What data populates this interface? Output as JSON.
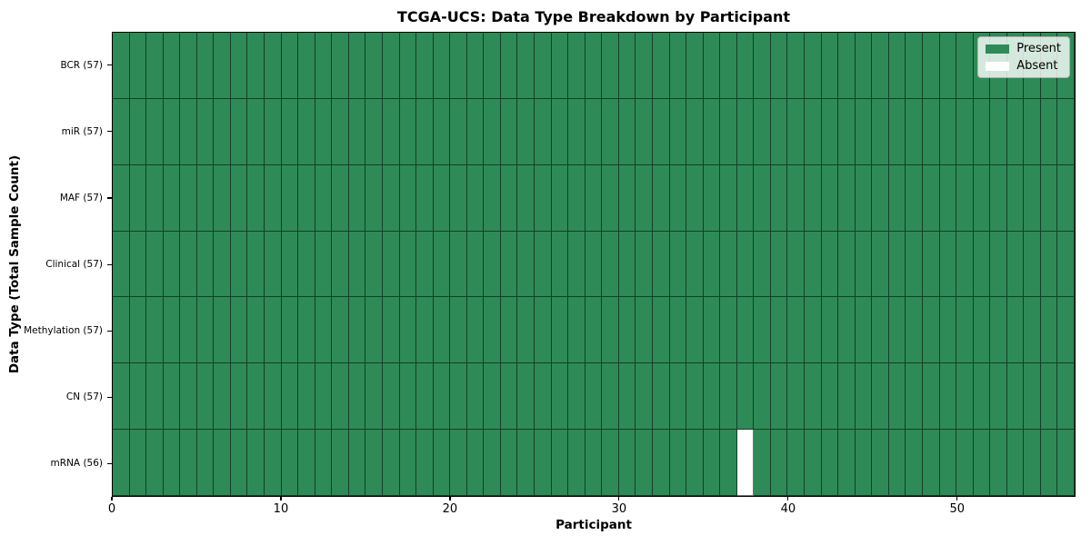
{
  "chart_data": {
    "type": "heatmap",
    "title": "TCGA-UCS: Data Type Breakdown by Participant",
    "xlabel": "Participant",
    "ylabel": "Data Type (Total Sample Count)",
    "x_ticks": [
      0,
      10,
      20,
      30,
      40,
      50
    ],
    "x_range": [
      0,
      57
    ],
    "n_participants": 57,
    "rows": [
      {
        "label": "BCR (57)",
        "data_type": "BCR",
        "total_sample_count": 57,
        "absent_columns": []
      },
      {
        "label": "miR (57)",
        "data_type": "miR",
        "total_sample_count": 57,
        "absent_columns": []
      },
      {
        "label": "MAF (57)",
        "data_type": "MAF",
        "total_sample_count": 57,
        "absent_columns": []
      },
      {
        "label": "Clinical (57)",
        "data_type": "Clinical",
        "total_sample_count": 57,
        "absent_columns": []
      },
      {
        "label": "Methylation (57)",
        "data_type": "Methylation",
        "total_sample_count": 57,
        "absent_columns": []
      },
      {
        "label": "CN (57)",
        "data_type": "CN",
        "total_sample_count": 57,
        "absent_columns": []
      },
      {
        "label": "mRNA (56)",
        "data_type": "mRNA",
        "total_sample_count": 56,
        "absent_columns": [
          37
        ]
      }
    ],
    "legend": {
      "position": "upper right",
      "items": [
        {
          "label": "Present",
          "color": "#2e8b57"
        },
        {
          "label": "Absent",
          "color": "#ffffff"
        }
      ]
    },
    "colors": {
      "present": "#2e8b57",
      "absent": "#ffffff",
      "grid_line": "rgba(0,0,0,0.55)",
      "axis": "#000000",
      "background": "#ffffff"
    },
    "grid": true
  }
}
